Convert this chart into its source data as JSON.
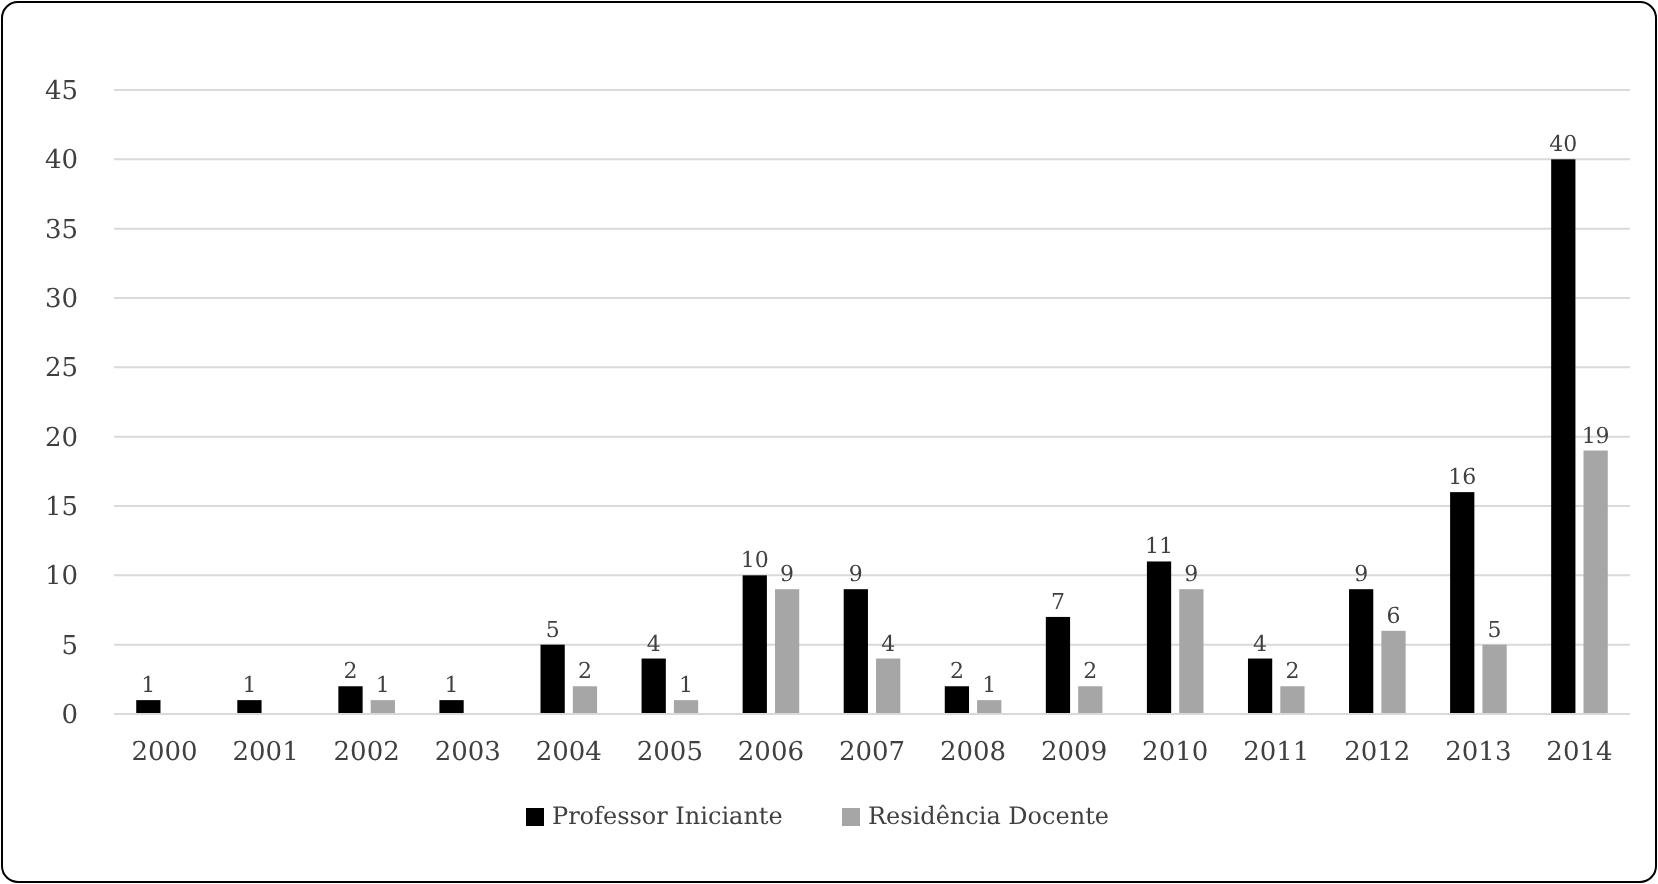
{
  "chart_data": {
    "type": "bar",
    "categories": [
      "2000",
      "2001",
      "2002",
      "2003",
      "2004",
      "2005",
      "2006",
      "2007",
      "2008",
      "2009",
      "2010",
      "2011",
      "2012",
      "2013",
      "2014"
    ],
    "series": [
      {
        "name": "Professor Iniciante",
        "color": "#000000",
        "values": [
          1,
          1,
          2,
          1,
          5,
          4,
          10,
          9,
          2,
          7,
          11,
          4,
          9,
          16,
          40
        ]
      },
      {
        "name": "Residência Docente",
        "color": "#a6a6a6",
        "values": [
          null,
          null,
          1,
          null,
          2,
          1,
          9,
          4,
          1,
          2,
          9,
          2,
          6,
          5,
          19
        ]
      }
    ],
    "ylim": [
      0,
      45
    ],
    "yticks": [
      0,
      5,
      10,
      15,
      20,
      25,
      30,
      35,
      40,
      45
    ],
    "grid": "y",
    "legend": "bottom",
    "data_labels": true
  }
}
